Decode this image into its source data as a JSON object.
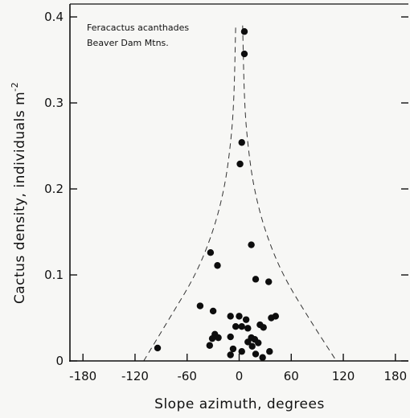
{
  "chart_data": {
    "type": "scatter",
    "annotation": [
      "Feracactus acanthades",
      "Beaver Dam Mtns."
    ],
    "xlabel": "Slope azimuth, degrees",
    "ylabel": "Cactus density, individuals m",
    "ylabel_exponent": "-2",
    "xlim": [
      -195,
      195
    ],
    "ylim": [
      0,
      0.415
    ],
    "x_ticks": [
      -180,
      -120,
      -60,
      0,
      60,
      120,
      180
    ],
    "x_tick_labels": [
      "-180",
      "-120",
      "-60",
      "0",
      "60",
      "120",
      "180"
    ],
    "y_ticks": [
      0,
      0.1,
      0.2,
      0.3,
      0.4
    ],
    "y_tick_labels": [
      "0",
      "0.1",
      "0.2",
      "0.3",
      "0.4"
    ],
    "grid": false,
    "envelope": {
      "style": "dashed",
      "left": [
        [
          -110,
          0
        ],
        [
          -80,
          0.05
        ],
        [
          -50,
          0.1
        ],
        [
          -30,
          0.15
        ],
        [
          -17,
          0.2
        ],
        [
          -10,
          0.25
        ],
        [
          -6,
          0.3
        ],
        [
          -4,
          0.39
        ]
      ],
      "right": [
        [
          4,
          0.39
        ],
        [
          6,
          0.3
        ],
        [
          10,
          0.25
        ],
        [
          17,
          0.2
        ],
        [
          30,
          0.15
        ],
        [
          50,
          0.1
        ],
        [
          80,
          0.05
        ],
        [
          112,
          0
        ]
      ]
    },
    "points": [
      {
        "x": 6,
        "y": 0.383
      },
      {
        "x": 6,
        "y": 0.357
      },
      {
        "x": 3,
        "y": 0.254
      },
      {
        "x": 1,
        "y": 0.229
      },
      {
        "x": 14,
        "y": 0.135
      },
      {
        "x": -33,
        "y": 0.126
      },
      {
        "x": -25,
        "y": 0.111
      },
      {
        "x": 19,
        "y": 0.095
      },
      {
        "x": 34,
        "y": 0.092
      },
      {
        "x": -45,
        "y": 0.064
      },
      {
        "x": -30,
        "y": 0.058
      },
      {
        "x": -10,
        "y": 0.052
      },
      {
        "x": 0,
        "y": 0.052
      },
      {
        "x": 8,
        "y": 0.048
      },
      {
        "x": 37,
        "y": 0.05
      },
      {
        "x": 42,
        "y": 0.052
      },
      {
        "x": -4,
        "y": 0.04
      },
      {
        "x": 3,
        "y": 0.04
      },
      {
        "x": 10,
        "y": 0.038
      },
      {
        "x": 24,
        "y": 0.042
      },
      {
        "x": 28,
        "y": 0.039
      },
      {
        "x": -28,
        "y": 0.031
      },
      {
        "x": -24,
        "y": 0.027
      },
      {
        "x": -31,
        "y": 0.026
      },
      {
        "x": -10,
        "y": 0.028
      },
      {
        "x": 14,
        "y": 0.027
      },
      {
        "x": 18,
        "y": 0.025
      },
      {
        "x": 10,
        "y": 0.022
      },
      {
        "x": 22,
        "y": 0.021
      },
      {
        "x": -34,
        "y": 0.018
      },
      {
        "x": 15,
        "y": 0.017
      },
      {
        "x": -7,
        "y": 0.014
      },
      {
        "x": 3,
        "y": 0.011
      },
      {
        "x": 35,
        "y": 0.011
      },
      {
        "x": -10,
        "y": 0.007
      },
      {
        "x": 19,
        "y": 0.008
      },
      {
        "x": 27,
        "y": 0.004
      },
      {
        "x": -94,
        "y": 0.015
      }
    ]
  }
}
